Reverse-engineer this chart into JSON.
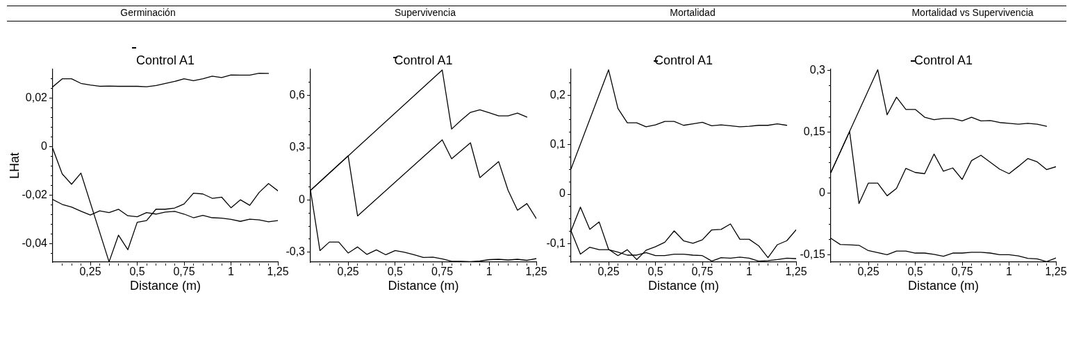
{
  "chart_data": [
    {
      "type": "line",
      "title": "Germinación",
      "subtitle": "Control A1",
      "xlabel": "Distance (m)",
      "ylabel": "LHat",
      "xlim": [
        0.05,
        1.25
      ],
      "xticks": [
        {
          "value": 0.1,
          "label": null
        },
        {
          "value": 0.15,
          "label": null
        },
        {
          "value": 0.2,
          "label": null
        },
        {
          "value": 0.25,
          "label": "0,25"
        },
        {
          "value": 0.3,
          "label": null
        },
        {
          "value": 0.35,
          "label": null
        },
        {
          "value": 0.4,
          "label": null
        },
        {
          "value": 0.45,
          "label": null
        },
        {
          "value": 0.5,
          "label": "0,5"
        },
        {
          "value": 0.55,
          "label": null
        },
        {
          "value": 0.6,
          "label": null
        },
        {
          "value": 0.65,
          "label": null
        },
        {
          "value": 0.7,
          "label": null
        },
        {
          "value": 0.75,
          "label": "0,75"
        },
        {
          "value": 0.8,
          "label": null
        },
        {
          "value": 0.85,
          "label": null
        },
        {
          "value": 0.9,
          "label": null
        },
        {
          "value": 0.95,
          "label": null
        },
        {
          "value": 1,
          "label": "1"
        },
        {
          "value": 1.05,
          "label": null
        },
        {
          "value": 1.1,
          "label": null
        },
        {
          "value": 1.15,
          "label": null
        },
        {
          "value": 1.2,
          "label": null
        },
        {
          "value": 1.25,
          "label": "1,25"
        }
      ],
      "ylim": [
        -0.0475,
        0.032
      ],
      "yticks": [
        {
          "value": -0.044,
          "label": null
        },
        {
          "value": -0.04,
          "label": "-0,04"
        },
        {
          "value": -0.036,
          "label": null
        },
        {
          "value": -0.032,
          "label": null
        },
        {
          "value": -0.028,
          "label": null
        },
        {
          "value": -0.024,
          "label": null
        },
        {
          "value": -0.02,
          "label": "-0,02"
        },
        {
          "value": -0.016,
          "label": null
        },
        {
          "value": -0.012,
          "label": null
        },
        {
          "value": -0.008,
          "label": null
        },
        {
          "value": -0.004,
          "label": null
        },
        {
          "value": 0,
          "label": "0"
        },
        {
          "value": 0.004,
          "label": null
        },
        {
          "value": 0.008,
          "label": null
        },
        {
          "value": 0.012,
          "label": null
        },
        {
          "value": 0.016,
          "label": null
        },
        {
          "value": 0.02,
          "label": "0,02"
        },
        {
          "value": 0.024,
          "label": null
        },
        {
          "value": 0.028,
          "label": null
        }
      ],
      "series": [
        {
          "color": "#000000",
          "x": [
            0.05,
            0.1,
            0.15,
            0.2,
            0.25,
            0.3,
            0.35,
            0.4,
            0.45,
            0.5,
            0.55,
            0.6,
            0.65,
            0.7,
            0.75,
            0.8,
            0.85,
            0.9,
            0.95,
            1,
            1.05,
            1.1,
            1.15,
            1.2
          ],
          "values": [
            0.0248,
            0.0281,
            0.0281,
            0.0262,
            0.0255,
            0.025,
            0.0251,
            0.025,
            0.025,
            0.025,
            0.0248,
            0.0253,
            0.0262,
            0.027,
            0.0281,
            0.0273,
            0.0281,
            0.0292,
            0.0286,
            0.0297,
            0.0296,
            0.0296,
            0.0304,
            0.0303
          ]
        },
        {
          "color": "#000000",
          "x": [
            0.05,
            0.1,
            0.15,
            0.2,
            0.35,
            0.4,
            0.45,
            0.5,
            0.55,
            0.6,
            0.65,
            0.7,
            0.75,
            0.8,
            0.85,
            0.9,
            0.95,
            1,
            1.05,
            1.1,
            1.15,
            1.2,
            1.25
          ],
          "values": [
            -0.0007,
            -0.0111,
            -0.0154,
            -0.0108,
            -0.0474,
            -0.0364,
            -0.0424,
            -0.0311,
            -0.0304,
            -0.0257,
            -0.0257,
            -0.0252,
            -0.0235,
            -0.0191,
            -0.0194,
            -0.0212,
            -0.0207,
            -0.0251,
            -0.0218,
            -0.0241,
            -0.0188,
            -0.0151,
            -0.0181
          ]
        },
        {
          "color": "#000000",
          "x": [
            0.05,
            0.1,
            0.15,
            0.2,
            0.25,
            0.3,
            0.35,
            0.4,
            0.45,
            0.5,
            0.55,
            0.6,
            0.65,
            0.7,
            0.75,
            0.8,
            0.85,
            0.9,
            0.95,
            1,
            1.05,
            1.1,
            1.15,
            1.2,
            1.25
          ],
          "values": [
            -0.0217,
            -0.0237,
            -0.0248,
            -0.0265,
            -0.0281,
            -0.0264,
            -0.0271,
            -0.0257,
            -0.0284,
            -0.0288,
            -0.0271,
            -0.0277,
            -0.0269,
            -0.0266,
            -0.0277,
            -0.0292,
            -0.0282,
            -0.0292,
            -0.0294,
            -0.0299,
            -0.0307,
            -0.0298,
            -0.0301,
            -0.0309,
            -0.0304
          ]
        }
      ]
    },
    {
      "type": "line",
      "title": "Supervivencia",
      "subtitle": "Control A1",
      "xlabel": "Distance (m)",
      "xlim": [
        0.05,
        1.25
      ],
      "xticks": [
        {
          "value": 0.1,
          "label": null
        },
        {
          "value": 0.15,
          "label": null
        },
        {
          "value": 0.2,
          "label": null
        },
        {
          "value": 0.25,
          "label": "0,25"
        },
        {
          "value": 0.3,
          "label": null
        },
        {
          "value": 0.35,
          "label": null
        },
        {
          "value": 0.4,
          "label": null
        },
        {
          "value": 0.45,
          "label": null
        },
        {
          "value": 0.5,
          "label": "0,5"
        },
        {
          "value": 0.55,
          "label": null
        },
        {
          "value": 0.6,
          "label": null
        },
        {
          "value": 0.65,
          "label": null
        },
        {
          "value": 0.7,
          "label": null
        },
        {
          "value": 0.75,
          "label": "0,75"
        },
        {
          "value": 0.8,
          "label": null
        },
        {
          "value": 0.85,
          "label": null
        },
        {
          "value": 0.9,
          "label": null
        },
        {
          "value": 0.95,
          "label": null
        },
        {
          "value": 1,
          "label": "1"
        },
        {
          "value": 1.05,
          "label": null
        },
        {
          "value": 1.1,
          "label": null
        },
        {
          "value": 1.15,
          "label": null
        },
        {
          "value": 1.2,
          "label": null
        },
        {
          "value": 1.25,
          "label": "1,25"
        }
      ],
      "ylim": [
        -0.357,
        0.75
      ],
      "yticks": [
        {
          "value": -0.3,
          "label": "-0,3"
        },
        {
          "value": -0.225,
          "label": null
        },
        {
          "value": -0.15,
          "label": null
        },
        {
          "value": -0.075,
          "label": null
        },
        {
          "value": 0,
          "label": "0"
        },
        {
          "value": 0.075,
          "label": null
        },
        {
          "value": 0.15,
          "label": null
        },
        {
          "value": 0.225,
          "label": null
        },
        {
          "value": 0.3,
          "label": "0,3"
        },
        {
          "value": 0.375,
          "label": null
        },
        {
          "value": 0.45,
          "label": null
        },
        {
          "value": 0.525,
          "label": null
        },
        {
          "value": 0.6,
          "label": "0,6"
        },
        {
          "value": 0.675,
          "label": null
        }
      ],
      "series": [
        {
          "color": "#000000",
          "x": [
            0.05,
            0.75,
            0.8,
            0.85,
            0.9,
            0.95,
            1,
            1.05,
            1.1,
            1.15,
            1.2
          ],
          "values": [
            0.055,
            0.746,
            0.407,
            0.457,
            0.503,
            0.518,
            0.501,
            0.483,
            0.483,
            0.499,
            0.476
          ]
        },
        {
          "color": "#000000",
          "x": [
            0.05,
            0.25,
            0.3,
            0.75,
            0.8,
            0.9,
            0.95,
            1.05,
            1.1,
            1.15,
            1.2,
            1.25
          ],
          "values": [
            0.055,
            0.253,
            -0.092,
            0.345,
            0.236,
            0.328,
            0.128,
            0.22,
            0.055,
            -0.059,
            -0.021,
            -0.107
          ]
        },
        {
          "color": "#000000",
          "x": [
            0.05,
            0.1,
            0.15,
            0.2,
            0.25,
            0.3,
            0.35,
            0.4,
            0.45,
            0.5,
            0.55,
            0.6,
            0.65,
            0.7,
            0.75,
            0.8,
            0.85,
            0.9,
            0.95,
            1,
            1.05,
            1.1,
            1.15,
            1.2,
            1.25
          ],
          "values": [
            0.055,
            -0.291,
            -0.242,
            -0.242,
            -0.305,
            -0.27,
            -0.313,
            -0.287,
            -0.315,
            -0.291,
            -0.301,
            -0.315,
            -0.331,
            -0.329,
            -0.339,
            -0.353,
            -0.353,
            -0.355,
            -0.351,
            -0.343,
            -0.341,
            -0.345,
            -0.341,
            -0.347,
            -0.337
          ]
        }
      ]
    },
    {
      "type": "line",
      "title": "Mortalidad",
      "subtitle": "Control A1",
      "xlabel": "Distance (m)",
      "xlim": [
        0.05,
        1.25
      ],
      "xticks": [
        {
          "value": 0.1,
          "label": null
        },
        {
          "value": 0.15,
          "label": null
        },
        {
          "value": 0.2,
          "label": null
        },
        {
          "value": 0.25,
          "label": "0,25"
        },
        {
          "value": 0.3,
          "label": null
        },
        {
          "value": 0.35,
          "label": null
        },
        {
          "value": 0.4,
          "label": null
        },
        {
          "value": 0.45,
          "label": null
        },
        {
          "value": 0.5,
          "label": "0,5"
        },
        {
          "value": 0.55,
          "label": null
        },
        {
          "value": 0.6,
          "label": null
        },
        {
          "value": 0.65,
          "label": null
        },
        {
          "value": 0.7,
          "label": null
        },
        {
          "value": 0.75,
          "label": "0,75"
        },
        {
          "value": 0.8,
          "label": null
        },
        {
          "value": 0.85,
          "label": null
        },
        {
          "value": 0.9,
          "label": null
        },
        {
          "value": 0.95,
          "label": null
        },
        {
          "value": 1,
          "label": "1"
        },
        {
          "value": 1.05,
          "label": null
        },
        {
          "value": 1.1,
          "label": null
        },
        {
          "value": 1.15,
          "label": null
        },
        {
          "value": 1.2,
          "label": null
        },
        {
          "value": 1.25,
          "label": "1,25"
        }
      ],
      "ylim": [
        -0.137,
        0.252
      ],
      "yticks": [
        {
          "value": -0.125,
          "label": null
        },
        {
          "value": -0.1,
          "label": "-0,1"
        },
        {
          "value": -0.075,
          "label": null
        },
        {
          "value": -0.05,
          "label": null
        },
        {
          "value": -0.025,
          "label": null
        },
        {
          "value": 0,
          "label": "0"
        },
        {
          "value": 0.025,
          "label": null
        },
        {
          "value": 0.05,
          "label": null
        },
        {
          "value": 0.075,
          "label": null
        },
        {
          "value": 0.1,
          "label": "0,1"
        },
        {
          "value": 0.125,
          "label": null
        },
        {
          "value": 0.15,
          "label": null
        },
        {
          "value": 0.175,
          "label": null
        },
        {
          "value": 0.2,
          "label": "0,2"
        },
        {
          "value": 0.225,
          "label": null
        }
      ],
      "series": [
        {
          "color": "#000000",
          "x": [
            0.05,
            0.25,
            0.3,
            0.35,
            0.4,
            0.45,
            0.5,
            0.55,
            0.6,
            0.65,
            0.7,
            0.75,
            0.8,
            0.85,
            0.9,
            0.95,
            1,
            1.05,
            1.1,
            1.15,
            1.2
          ],
          "values": [
            0.051,
            0.251,
            0.173,
            0.144,
            0.144,
            0.136,
            0.14,
            0.147,
            0.147,
            0.139,
            0.142,
            0.145,
            0.138,
            0.14,
            0.138,
            0.136,
            0.137,
            0.139,
            0.139,
            0.142,
            0.139
          ]
        },
        {
          "color": "#000000",
          "x": [
            0.05,
            0.1,
            0.15,
            0.2,
            0.25,
            0.3,
            0.35,
            0.4,
            0.45,
            0.5,
            0.55,
            0.6,
            0.65,
            0.7,
            0.75,
            0.8,
            0.85,
            0.9,
            0.95,
            1,
            1.05,
            1.1,
            1.15,
            1.2,
            1.25
          ],
          "values": [
            -0.074,
            -0.026,
            -0.071,
            -0.056,
            -0.111,
            -0.124,
            -0.112,
            -0.132,
            -0.113,
            -0.106,
            -0.097,
            -0.074,
            -0.094,
            -0.099,
            -0.092,
            -0.072,
            -0.071,
            -0.06,
            -0.091,
            -0.091,
            -0.104,
            -0.128,
            -0.102,
            -0.094,
            -0.072
          ]
        },
        {
          "color": "#000000",
          "x": [
            0.05,
            0.1,
            0.15,
            0.2,
            0.25,
            0.3,
            0.35,
            0.4,
            0.45,
            0.5,
            0.55,
            0.6,
            0.65,
            0.7,
            0.75,
            0.8,
            0.85,
            0.9,
            0.95,
            1,
            1.05,
            1.1,
            1.15,
            1.2,
            1.25
          ],
          "values": [
            -0.074,
            -0.121,
            -0.107,
            -0.112,
            -0.112,
            -0.117,
            -0.123,
            -0.123,
            -0.118,
            -0.124,
            -0.124,
            -0.121,
            -0.121,
            -0.123,
            -0.124,
            -0.135,
            -0.128,
            -0.129,
            -0.127,
            -0.129,
            -0.135,
            -0.134,
            -0.132,
            -0.129,
            -0.13
          ]
        }
      ]
    },
    {
      "type": "line",
      "title": "Mortalidad vs Supervivencia",
      "subtitle": "Control A1",
      "xlabel": "Distance (m)",
      "xlim": [
        0.05,
        1.25
      ],
      "xticks": [
        {
          "value": 0.1,
          "label": null
        },
        {
          "value": 0.15,
          "label": null
        },
        {
          "value": 0.2,
          "label": null
        },
        {
          "value": 0.25,
          "label": "0,25"
        },
        {
          "value": 0.3,
          "label": null
        },
        {
          "value": 0.35,
          "label": null
        },
        {
          "value": 0.4,
          "label": null
        },
        {
          "value": 0.45,
          "label": null
        },
        {
          "value": 0.5,
          "label": "0,5"
        },
        {
          "value": 0.55,
          "label": null
        },
        {
          "value": 0.6,
          "label": null
        },
        {
          "value": 0.65,
          "label": null
        },
        {
          "value": 0.7,
          "label": null
        },
        {
          "value": 0.75,
          "label": "0,75"
        },
        {
          "value": 0.8,
          "label": null
        },
        {
          "value": 0.85,
          "label": null
        },
        {
          "value": 0.9,
          "label": null
        },
        {
          "value": 0.95,
          "label": null
        },
        {
          "value": 1,
          "label": "1"
        },
        {
          "value": 1.05,
          "label": null
        },
        {
          "value": 1.1,
          "label": null
        },
        {
          "value": 1.15,
          "label": null
        },
        {
          "value": 1.2,
          "label": null
        },
        {
          "value": 1.25,
          "label": "1,25"
        }
      ],
      "ylim": [
        -0.168,
        0.303
      ],
      "yticks": [
        {
          "value": -0.15,
          "label": "-0,15"
        },
        {
          "value": -0.1125,
          "label": null
        },
        {
          "value": -0.075,
          "label": null
        },
        {
          "value": -0.0375,
          "label": null
        },
        {
          "value": 0,
          "label": "0"
        },
        {
          "value": 0.0375,
          "label": null
        },
        {
          "value": 0.075,
          "label": null
        },
        {
          "value": 0.1125,
          "label": null
        },
        {
          "value": 0.15,
          "label": "0,15"
        },
        {
          "value": 0.1875,
          "label": null
        },
        {
          "value": 0.225,
          "label": null
        },
        {
          "value": 0.2625,
          "label": null
        },
        {
          "value": 0.3,
          "label": "0,3"
        }
      ],
      "series": [
        {
          "color": "#000000",
          "x": [
            0.05,
            0.3,
            0.35,
            0.4,
            0.45,
            0.5,
            0.55,
            0.6,
            0.65,
            0.7,
            0.75,
            0.8,
            0.85,
            0.9,
            0.95,
            1,
            1.05,
            1.1,
            1.15,
            1.2
          ],
          "values": [
            0.051,
            0.302,
            0.192,
            0.235,
            0.205,
            0.205,
            0.186,
            0.18,
            0.183,
            0.183,
            0.177,
            0.186,
            0.177,
            0.178,
            0.173,
            0.171,
            0.169,
            0.171,
            0.169,
            0.164
          ]
        },
        {
          "color": "#000000",
          "x": [
            0.05,
            0.15,
            0.2,
            0.25,
            0.3,
            0.35,
            0.4,
            0.45,
            0.5,
            0.55,
            0.6,
            0.65,
            0.7,
            0.75,
            0.8,
            0.85,
            0.9,
            0.95,
            1,
            1.05,
            1.1,
            1.15,
            1.2,
            1.25
          ],
          "values": [
            0.051,
            0.151,
            -0.025,
            0.025,
            0.025,
            -0.006,
            0.012,
            0.061,
            0.051,
            0.048,
            0.096,
            0.054,
            0.062,
            0.034,
            0.08,
            0.093,
            0.076,
            0.059,
            0.048,
            0.066,
            0.085,
            0.077,
            0.058,
            0.065
          ]
        },
        {
          "color": "#000000",
          "x": [
            0.05,
            0.1,
            0.15,
            0.2,
            0.25,
            0.3,
            0.35,
            0.4,
            0.45,
            0.5,
            0.55,
            0.6,
            0.65,
            0.7,
            0.75,
            0.8,
            0.85,
            0.9,
            0.95,
            1,
            1.05,
            1.1,
            1.15,
            1.2,
            1.25
          ],
          "values": [
            -0.11,
            -0.125,
            -0.126,
            -0.127,
            -0.14,
            -0.145,
            -0.15,
            -0.141,
            -0.141,
            -0.146,
            -0.146,
            -0.149,
            -0.154,
            -0.146,
            -0.146,
            -0.144,
            -0.144,
            -0.146,
            -0.15,
            -0.15,
            -0.153,
            -0.159,
            -0.16,
            -0.167,
            -0.158
          ]
        }
      ]
    }
  ]
}
